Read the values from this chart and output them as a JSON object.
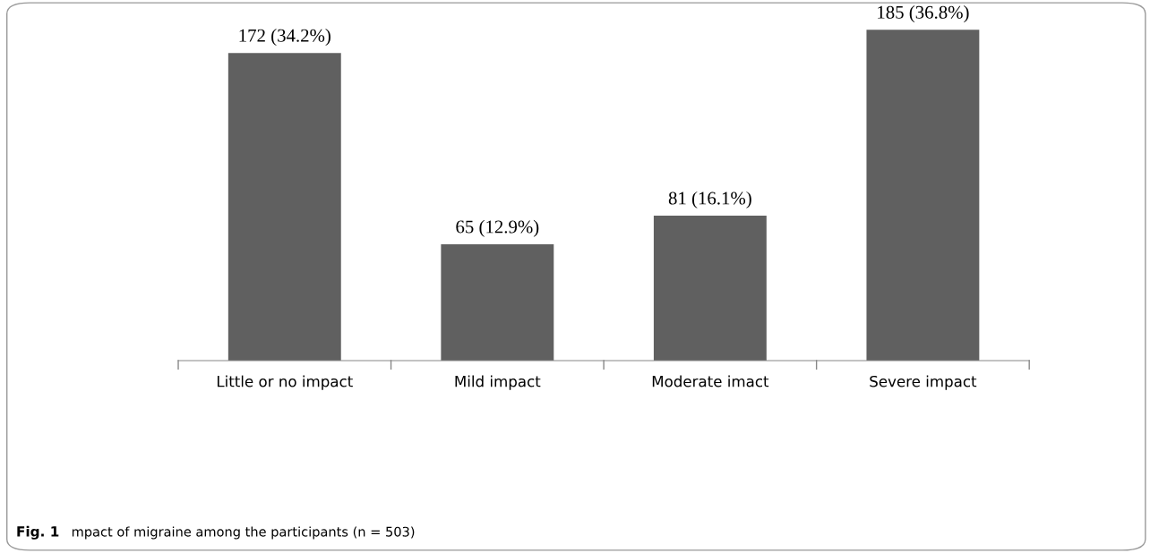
{
  "chart_data": {
    "type": "bar",
    "categories": [
      "Little or no impact",
      "Mild impact",
      "Moderate imact",
      "Severe impact"
    ],
    "values": [
      172,
      65,
      81,
      185
    ],
    "value_labels": [
      "172 (34.2%)",
      "65 (12.9%)",
      "81 (16.1%)",
      "185 (36.8%)"
    ],
    "color": "#606060",
    "annotations": [
      "Fig. 1",
      "mpact of migraine among the participants (n = 503)"
    ]
  }
}
